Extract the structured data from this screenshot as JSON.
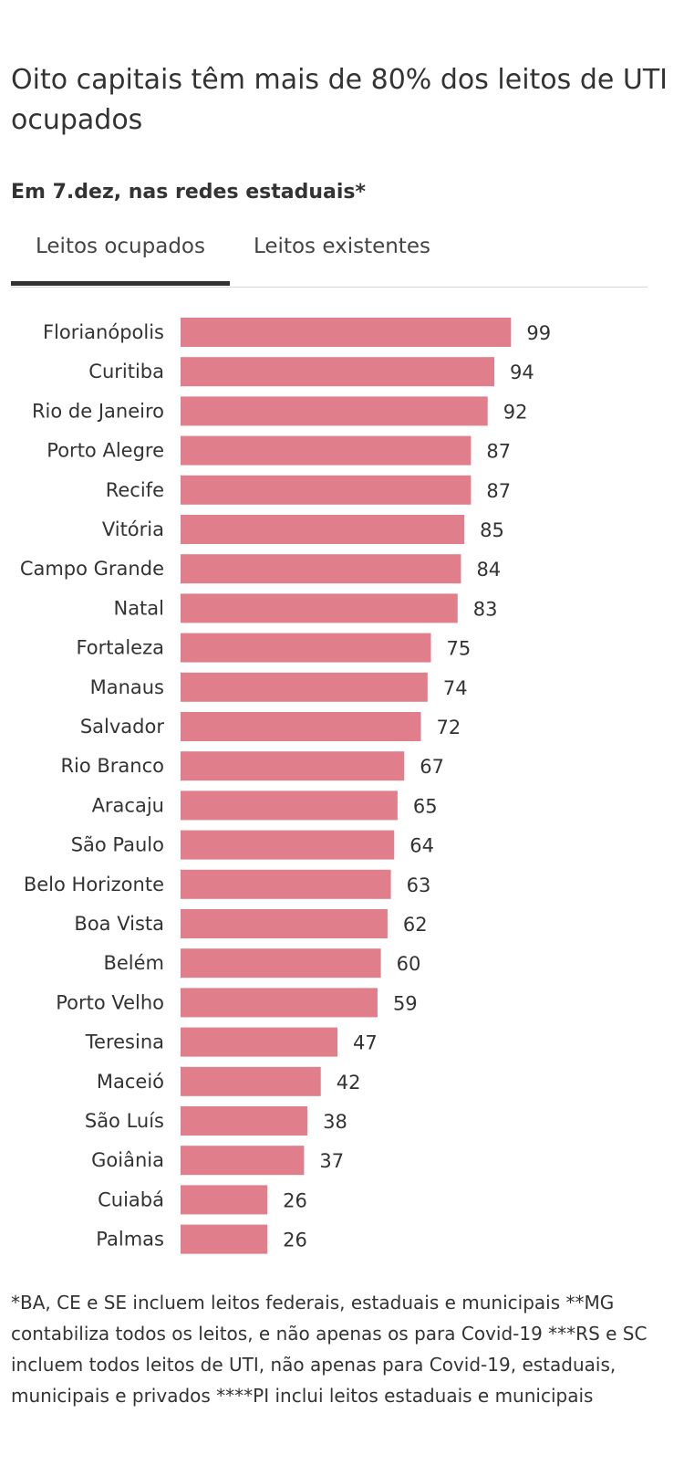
{
  "header": {
    "title": "Oito capitais têm mais de 80% dos leitos de UTI ocupados",
    "subtitle": "Em 7.dez, nas redes estaduais*"
  },
  "tabs": [
    {
      "label": "Leitos ocupados",
      "active": true
    },
    {
      "label": "Leitos existentes",
      "active": false
    }
  ],
  "colors": {
    "bar": "#e07f8b",
    "tab_active_underline": "#333333"
  },
  "chart_data": {
    "type": "bar",
    "orientation": "horizontal",
    "categories": [
      "Florianópolis",
      "Curitiba",
      "Rio de Janeiro",
      "Porto Alegre",
      "Recife",
      "Vitória",
      "Campo Grande",
      "Natal",
      "Fortaleza",
      "Manaus",
      "Salvador",
      "Rio Branco",
      "Aracaju",
      "São Paulo",
      "Belo Horizonte",
      "Boa Vista",
      "Belém",
      "Porto Velho",
      "Teresina",
      "Maceió",
      "São Luís",
      "Goiânia",
      "Cuiabá",
      "Palmas"
    ],
    "values": [
      99,
      94,
      92,
      87,
      87,
      85,
      84,
      83,
      75,
      74,
      72,
      67,
      65,
      64,
      63,
      62,
      60,
      59,
      47,
      42,
      38,
      37,
      26,
      26
    ],
    "xlim": [
      0,
      100
    ],
    "grid": false,
    "data_labels": true
  },
  "footnote": "*BA, CE e SE incluem leitos federais, estaduais e municipais **MG contabiliza todos os leitos, e não apenas os para Covid-19 ***RS e SC incluem todos leitos de UTI, não apenas para Covid-19, estaduais, municipais e privados ****PI inclui leitos estaduais e municipais"
}
